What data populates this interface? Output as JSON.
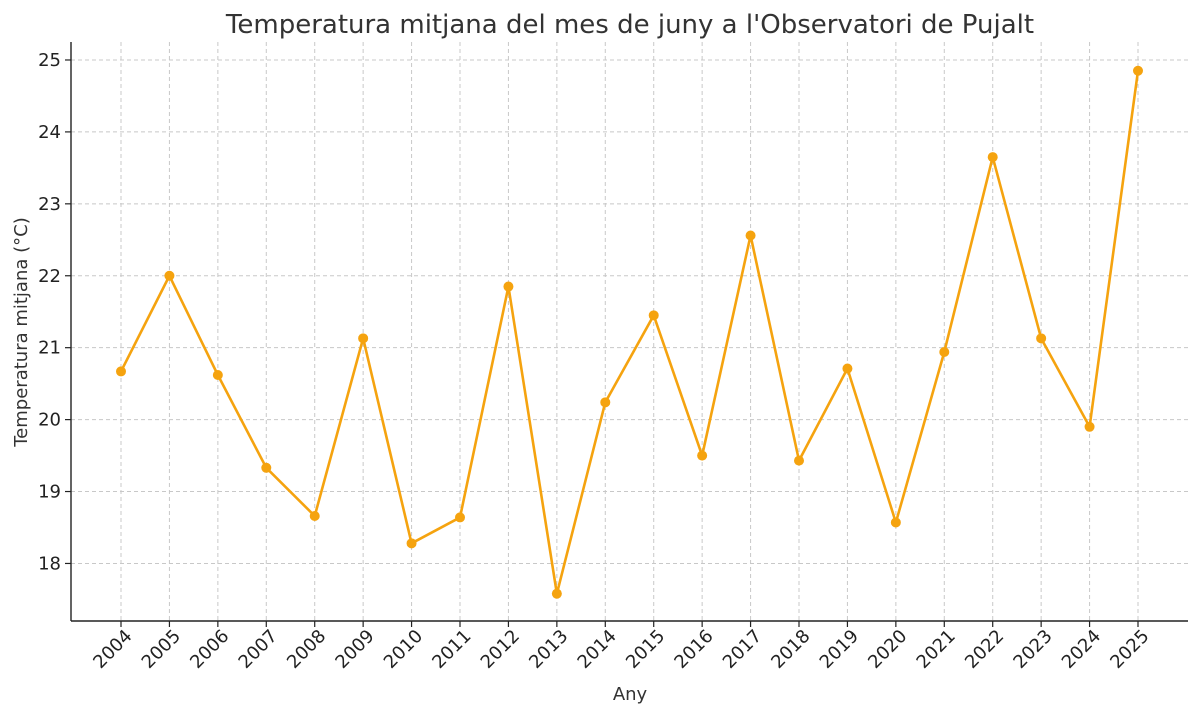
{
  "chart_data": {
    "type": "line",
    "title": "Temperatura mitjana del mes de juny a l'Observatori de Pujalt",
    "xlabel": "Any",
    "ylabel": "Temperatura mitjana (°C)",
    "x": [
      "2004",
      "2005",
      "2006",
      "2007",
      "2008",
      "2009",
      "2010",
      "2011",
      "2012",
      "2013",
      "2014",
      "2015",
      "2016",
      "2017",
      "2018",
      "2019",
      "2020",
      "2021",
      "2022",
      "2023",
      "2024",
      "2025"
    ],
    "series": [
      {
        "values": [
          20.67,
          22.0,
          20.62,
          19.33,
          18.66,
          21.13,
          18.28,
          18.64,
          21.85,
          17.58,
          20.24,
          21.45,
          19.5,
          22.56,
          19.43,
          20.71,
          18.57,
          20.94,
          23.65,
          21.13,
          19.9,
          24.85
        ]
      }
    ],
    "yticks": [
      18,
      19,
      20,
      21,
      22,
      23,
      24,
      25
    ],
    "ylim": [
      17.2,
      25.25
    ],
    "grid": true,
    "color": "#f5a30f"
  }
}
